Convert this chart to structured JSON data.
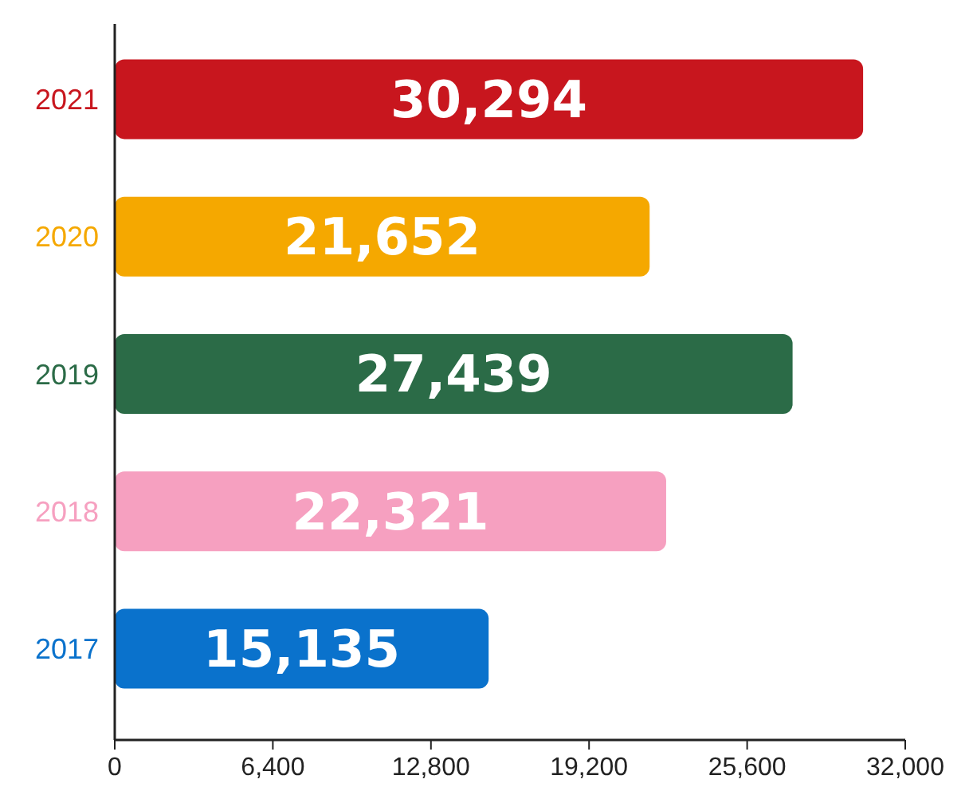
{
  "chart_data": {
    "type": "bar",
    "orientation": "horizontal",
    "categories": [
      "2021",
      "2020",
      "2019",
      "2018",
      "2017"
    ],
    "values": [
      30294,
      21652,
      27439,
      22321,
      15135
    ],
    "value_labels": [
      "30,294",
      "21,652",
      "27,439",
      "22,321",
      "15,135"
    ],
    "colors": [
      "#c8161e",
      "#f5a800",
      "#2b6b47",
      "#f6a0c0",
      "#0a72cc"
    ],
    "xlim": [
      0,
      32000
    ],
    "xticks": [
      0,
      {
        "value": 6400,
        "label": "6,400"
      },
      {
        "value": 12800,
        "label": "12,800"
      },
      {
        "value": 19200,
        "label": "19,200"
      },
      {
        "value": 25600,
        "label": "25,600"
      },
      {
        "value": 32000,
        "label": "32,000"
      }
    ]
  }
}
